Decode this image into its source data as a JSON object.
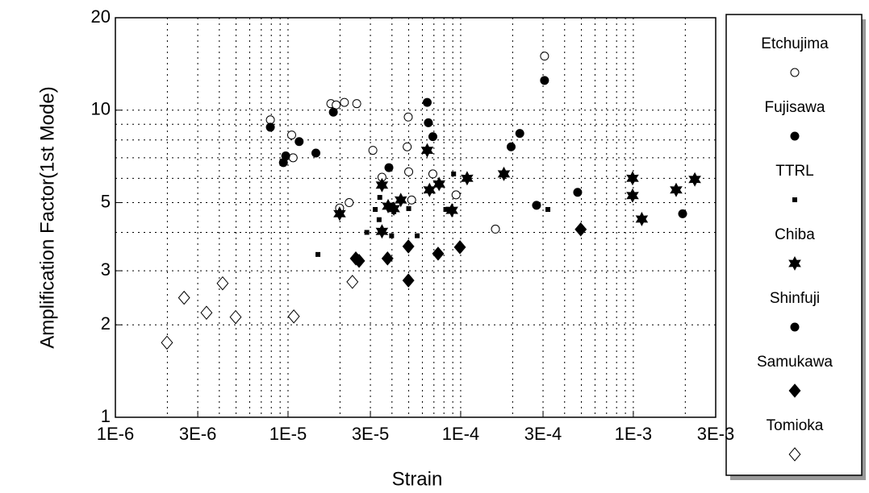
{
  "chart_data": {
    "type": "scatter",
    "x_label": "Strain",
    "y_label": "Amplification Factor(1st Mode)",
    "xscale": "log",
    "yscale": "log",
    "grid": true,
    "legend": "right",
    "xlim": [
      1e-06,
      0.003
    ],
    "ylim": [
      1,
      20
    ],
    "xticks": [
      {
        "value": 1e-06,
        "label": "1E-6"
      },
      {
        "value": 3e-06,
        "label": "3E-6"
      },
      {
        "value": 1e-05,
        "label": "1E-5"
      },
      {
        "value": 3e-05,
        "label": "3E-5"
      },
      {
        "value": 0.0001,
        "label": "1E-4"
      },
      {
        "value": 0.0003,
        "label": "3E-4"
      },
      {
        "value": 0.001,
        "label": "1E-3"
      },
      {
        "value": 0.003,
        "label": "3E-3"
      }
    ],
    "yticks": [
      1,
      2,
      3,
      5,
      10,
      20
    ],
    "series": [
      {
        "name": "Etchujima",
        "color": "#000000",
        "marker": "circle-open",
        "x": [
          7.9e-06,
          1.05e-05,
          1.07e-05,
          1.77e-05,
          1.9e-05,
          2.12e-05,
          2.5e-05,
          1.99e-05,
          2.26e-05,
          3.1e-05,
          3.5e-05,
          4.97e-05,
          4.9e-05,
          5e-05,
          5.2e-05,
          6.9e-05,
          9.4e-05,
          0.000159,
          0.000306
        ],
        "values": [
          9.3,
          8.3,
          7.0,
          10.5,
          10.4,
          10.6,
          10.5,
          4.8,
          5.0,
          7.4,
          6.05,
          9.5,
          7.6,
          6.3,
          5.1,
          6.2,
          5.3,
          4.1,
          15
        ]
      },
      {
        "name": "Fujisawa",
        "color": "#000000",
        "marker": "circle",
        "x": [
          7.9e-06,
          9.4e-06,
          9.7e-06,
          1.16e-05,
          1.45e-05,
          1.83e-05,
          3.84e-05,
          6.4e-05
        ],
        "values": [
          8.8,
          6.75,
          7.1,
          7.9,
          7.25,
          9.85,
          6.5,
          10.6
        ]
      },
      {
        "name": "TTRL",
        "color": "#000000",
        "marker": "square",
        "x": [
          1.49e-05,
          2.86e-05,
          3.2e-05,
          3.37e-05,
          3.4e-05,
          3.98e-05,
          4.1e-05,
          5e-05,
          5.6e-05,
          9.1e-05,
          8.2e-05,
          0.00032
        ],
        "values": [
          3.39,
          4.0,
          4.75,
          4.4,
          5.2,
          3.9,
          4.67,
          4.78,
          3.9,
          6.2,
          4.75,
          4.75
        ]
      },
      {
        "name": "Chiba",
        "color": "#000000",
        "marker": "star",
        "x": [
          1.99e-05,
          3.5e-05,
          3.5e-05,
          3.8e-05,
          4.1e-05,
          4.5e-05,
          6.4e-05,
          6.6e-05,
          7.5e-05,
          8.9e-05,
          0.000109,
          0.000178,
          0.00099,
          0.00099,
          0.00112,
          0.00177,
          0.00227
        ],
        "values": [
          4.6,
          5.7,
          4.03,
          4.87,
          4.78,
          5.1,
          7.4,
          5.5,
          5.75,
          4.72,
          6.0,
          6.2,
          6.0,
          5.27,
          4.42,
          5.5,
          5.95
        ]
      },
      {
        "name": "Shinfuji",
        "color": "#000000",
        "marker": "circle",
        "x": [
          6.5e-05,
          6.9e-05,
          0.000196,
          0.00022,
          0.000306,
          0.000275,
          0.000476,
          0.00193
        ],
        "values": [
          9.1,
          8.2,
          7.6,
          8.4,
          12.5,
          4.9,
          5.4,
          4.6
        ]
      },
      {
        "name": "Samukawa",
        "color": "#000000",
        "marker": "diamond",
        "x": [
          2.47e-05,
          2.58e-05,
          3.77e-05,
          4.98e-05,
          4.98e-05,
          7.4e-05,
          9.9e-05,
          0.000496
        ],
        "values": [
          3.29,
          3.23,
          3.29,
          3.6,
          2.79,
          3.41,
          3.58,
          4.09
        ]
      },
      {
        "name": "Tomioka",
        "color": "#000000",
        "marker": "diamond-open",
        "x": [
          1.99e-06,
          2.5e-06,
          3.37e-06,
          4.18e-06,
          4.97e-06,
          1.08e-05,
          2.36e-05
        ],
        "values": [
          1.75,
          2.45,
          2.19,
          2.73,
          2.12,
          2.13,
          2.76
        ]
      }
    ]
  }
}
